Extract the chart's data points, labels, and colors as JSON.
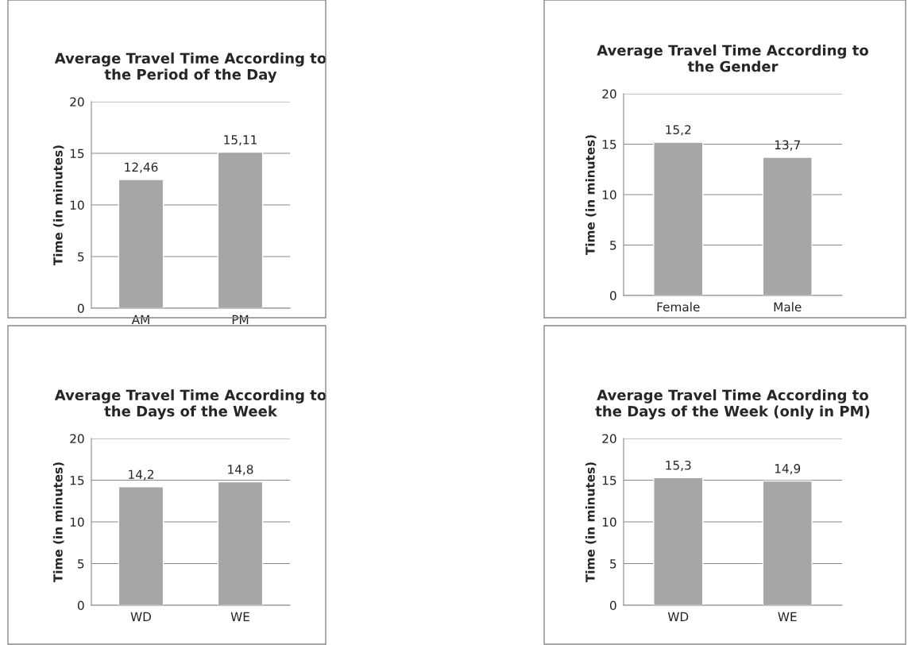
{
  "chart_data": [
    {
      "type": "bar",
      "title": "Average Travel Time According to\nthe Period of the Day",
      "ylabel": "Time (in minutes)",
      "categories": [
        "AM",
        "PM"
      ],
      "values": [
        12.46,
        15.11
      ],
      "value_labels": [
        "12,46",
        "15,11"
      ],
      "color": "#a6a6a6",
      "ylim": [
        0,
        20
      ],
      "yticks": [
        0,
        5,
        10,
        15,
        20
      ],
      "grid": "y"
    },
    {
      "type": "bar",
      "title": "Average Travel Time According to\nthe Gender",
      "ylabel": "Time (in minutes)",
      "categories": [
        "Female",
        "Male"
      ],
      "values": [
        15.2,
        13.7
      ],
      "value_labels": [
        "15,2",
        "13,7"
      ],
      "color": "#a6a6a6",
      "ylim": [
        0,
        20
      ],
      "yticks": [
        0,
        5,
        10,
        15,
        20
      ],
      "grid": "y"
    },
    {
      "type": "bar",
      "title": "Average Travel Time According to\nthe Days of the Week",
      "ylabel": "Time (in minutes)",
      "categories": [
        "WD",
        "WE"
      ],
      "values": [
        14.2,
        14.8
      ],
      "value_labels": [
        "14,2",
        "14,8"
      ],
      "color": "#a6a6a6",
      "ylim": [
        0,
        20
      ],
      "yticks": [
        0,
        5,
        10,
        15,
        20
      ],
      "grid": "y"
    },
    {
      "type": "bar",
      "title": "Average Travel Time According to\nthe Days of the Week (only in PM)",
      "ylabel": "Time (in minutes)",
      "categories": [
        "WD",
        "WE"
      ],
      "values": [
        15.3,
        14.9
      ],
      "value_labels": [
        "15,3",
        "14,9"
      ],
      "color": "#a6a6a6",
      "ylim": [
        0,
        20
      ],
      "yticks": [
        0,
        5,
        10,
        15,
        20
      ],
      "grid": "y"
    }
  ]
}
